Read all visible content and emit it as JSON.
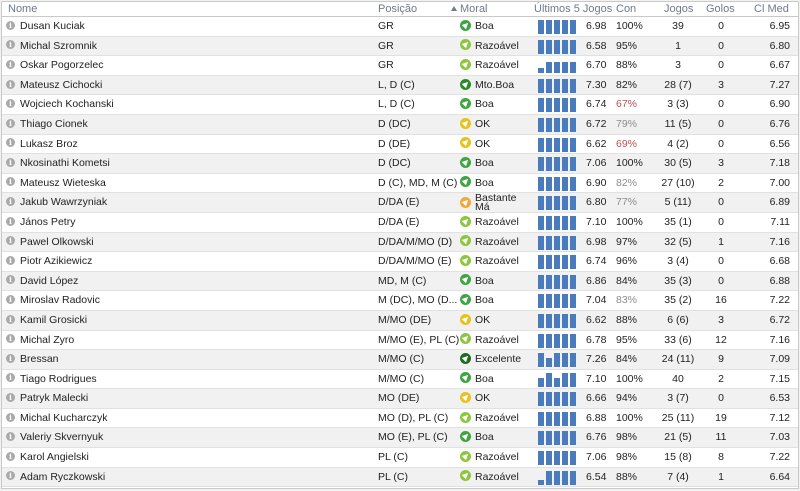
{
  "headers": {
    "name": "Nome",
    "position": "Posição",
    "morale": "Moral",
    "last5": "Últimos 5 Jogos",
    "con": "Con",
    "games": "Jogos",
    "goals": "Golos",
    "avg_rating": "Cl Med"
  },
  "colors": {
    "bar": "#4a7bbd",
    "low_condition": "#c0504d",
    "header_text": "#6f7a8a"
  },
  "players": [
    {
      "name": "Dusan Kuciak",
      "pos": "GR",
      "morale": "Boa",
      "morale_icon": "m-boa",
      "form": [
        6.9,
        6.9,
        6.9,
        6.9,
        6.9
      ],
      "last": "6.98",
      "con": "100%",
      "con_class": "",
      "games": "39",
      "goals": "0",
      "avg": "6.95"
    },
    {
      "name": "Michal Szromnik",
      "pos": "GR",
      "morale": "Razoável",
      "morale_icon": "m-raz",
      "form": [
        6.9,
        6.9,
        6.9,
        6.9,
        6.9
      ],
      "last": "6.58",
      "con": "95%",
      "con_class": "",
      "games": "1",
      "goals": "0",
      "avg": "6.80"
    },
    {
      "name": "Oskar Pogorzelec",
      "pos": "GR",
      "morale": "Razoável",
      "morale_icon": "m-raz",
      "form": [
        6.0,
        6.6,
        6.6,
        6.6,
        6.6
      ],
      "last": "6.70",
      "con": "88%",
      "con_class": "",
      "games": "3",
      "goals": "0",
      "avg": "6.67"
    },
    {
      "name": "Mateusz Cichocki",
      "pos": "L, D (C)",
      "morale": "Mto.Boa",
      "morale_icon": "m-mto",
      "form": [
        6.9,
        6.9,
        6.9,
        6.9,
        6.9
      ],
      "last": "7.30",
      "con": "82%",
      "con_class": "",
      "games": "28 (7)",
      "goals": "3",
      "avg": "7.27"
    },
    {
      "name": "Wojciech Kochanski",
      "pos": "L, D (C)",
      "morale": "Boa",
      "morale_icon": "m-boa",
      "form": [
        6.9,
        6.9,
        6.9,
        6.9,
        6.9
      ],
      "last": "6.74",
      "con": "67%",
      "con_class": "low",
      "games": "3 (3)",
      "goals": "0",
      "avg": "6.90"
    },
    {
      "name": "Thiago Cionek",
      "pos": "D (DC)",
      "morale": "OK",
      "morale_icon": "m-ok",
      "form": [
        6.9,
        6.9,
        6.9,
        6.9,
        6.9
      ],
      "last": "6.72",
      "con": "79%",
      "con_class": "mid",
      "games": "11 (5)",
      "goals": "0",
      "avg": "6.76"
    },
    {
      "name": "Lukasz Broz",
      "pos": "D (DE)",
      "morale": "OK",
      "morale_icon": "m-ok",
      "form": [
        6.9,
        6.9,
        6.9,
        6.9,
        6.9
      ],
      "last": "6.62",
      "con": "69%",
      "con_class": "low",
      "games": "4 (2)",
      "goals": "0",
      "avg": "6.56"
    },
    {
      "name": "Nkosinathi Kometsi",
      "pos": "D (DC)",
      "morale": "Boa",
      "morale_icon": "m-boa",
      "form": [
        6.9,
        6.9,
        6.9,
        6.9,
        6.9
      ],
      "last": "7.06",
      "con": "100%",
      "con_class": "",
      "games": "30 (5)",
      "goals": "3",
      "avg": "7.18"
    },
    {
      "name": "Mateusz Wieteska",
      "pos": "D (C), MD, M (C)",
      "morale": "Boa",
      "morale_icon": "m-boa",
      "form": [
        6.9,
        6.9,
        6.9,
        6.9,
        6.9
      ],
      "last": "6.90",
      "con": "82%",
      "con_class": "mid",
      "games": "27 (10)",
      "goals": "2",
      "avg": "7.00"
    },
    {
      "name": "Jakub Wawrzyniak",
      "pos": "D/DA (E)",
      "morale": "Bastante Má",
      "morale_l1": "Bastante",
      "morale_l2": "Má",
      "morale_icon": "m-bm",
      "form": [
        6.9,
        6.9,
        6.9,
        6.9,
        6.9
      ],
      "last": "6.80",
      "con": "77%",
      "con_class": "mid",
      "games": "5 (11)",
      "goals": "0",
      "avg": "6.89"
    },
    {
      "name": "János Petry",
      "pos": "D/DA (E)",
      "morale": "Razoável",
      "morale_icon": "m-raz",
      "form": [
        6.9,
        6.9,
        6.9,
        6.9,
        6.9
      ],
      "last": "7.10",
      "con": "100%",
      "con_class": "",
      "games": "35 (1)",
      "goals": "0",
      "avg": "7.11"
    },
    {
      "name": "Pawel Olkowski",
      "pos": "D/DA/M/MO (D)",
      "morale": "Razoável",
      "morale_icon": "m-raz",
      "form": [
        6.9,
        6.9,
        6.9,
        6.9,
        6.9
      ],
      "last": "6.98",
      "con": "97%",
      "con_class": "",
      "games": "32 (5)",
      "goals": "1",
      "avg": "7.16"
    },
    {
      "name": "Piotr Azikiewicz",
      "pos": "D/DA/M/MO (E)",
      "morale": "Razoável",
      "morale_icon": "m-raz",
      "form": [
        6.9,
        6.9,
        6.9,
        6.9,
        6.9
      ],
      "last": "6.74",
      "con": "96%",
      "con_class": "",
      "games": "3 (4)",
      "goals": "0",
      "avg": "6.68"
    },
    {
      "name": "David López",
      "pos": "MD, M (C)",
      "morale": "Boa",
      "morale_icon": "m-boa",
      "form": [
        6.9,
        6.9,
        6.9,
        6.9,
        6.9
      ],
      "last": "6.86",
      "con": "84%",
      "con_class": "",
      "games": "35 (3)",
      "goals": "0",
      "avg": "6.88"
    },
    {
      "name": "Miroslav Radovic",
      "pos": "M (DC), MO (D...",
      "morale": "Boa",
      "morale_icon": "m-boa",
      "form": [
        6.9,
        6.9,
        6.9,
        6.9,
        6.9
      ],
      "last": "7.04",
      "con": "83%",
      "con_class": "mid",
      "games": "35 (2)",
      "goals": "16",
      "avg": "7.22"
    },
    {
      "name": "Kamil Grosicki",
      "pos": "M/MO (DE)",
      "morale": "OK",
      "morale_icon": "m-ok",
      "form": [
        6.9,
        6.9,
        6.9,
        6.9,
        6.9
      ],
      "last": "6.62",
      "con": "88%",
      "con_class": "",
      "games": "6 (6)",
      "goals": "3",
      "avg": "6.72"
    },
    {
      "name": "Michal Zyro",
      "pos": "M/MO (E), PL (C)",
      "morale": "Razoável",
      "morale_icon": "m-raz",
      "form": [
        6.9,
        6.9,
        6.9,
        6.9,
        6.9
      ],
      "last": "6.78",
      "con": "95%",
      "con_class": "",
      "games": "33 (6)",
      "goals": "12",
      "avg": "7.16"
    },
    {
      "name": "Bressan",
      "pos": "M/MO (C)",
      "morale": "Excelente",
      "morale_icon": "m-exc",
      "form": [
        6.9,
        6.4,
        6.9,
        6.9,
        6.9
      ],
      "last": "7.26",
      "con": "84%",
      "con_class": "",
      "games": "24 (11)",
      "goals": "9",
      "avg": "7.09"
    },
    {
      "name": "Tiago Rodrigues",
      "pos": "M/MO (C)",
      "morale": "Boa",
      "morale_icon": "m-boa",
      "form": [
        6.4,
        6.9,
        6.4,
        6.9,
        6.9
      ],
      "last": "7.10",
      "con": "100%",
      "con_class": "",
      "games": "40",
      "goals": "2",
      "avg": "7.15"
    },
    {
      "name": "Patryk Malecki",
      "pos": "MO (DE)",
      "morale": "OK",
      "morale_icon": "m-ok",
      "form": [
        6.9,
        6.9,
        6.9,
        6.9,
        6.9
      ],
      "last": "6.66",
      "con": "94%",
      "con_class": "",
      "games": "3 (7)",
      "goals": "0",
      "avg": "6.53"
    },
    {
      "name": "Michal Kucharczyk",
      "pos": "MO (D), PL (C)",
      "morale": "Razoável",
      "morale_icon": "m-raz",
      "form": [
        6.9,
        6.9,
        6.9,
        6.9,
        6.9
      ],
      "last": "6.88",
      "con": "100%",
      "con_class": "",
      "games": "25 (11)",
      "goals": "19",
      "avg": "7.12"
    },
    {
      "name": "Valeriy Skvernyuk",
      "pos": "MO (E), PL (C)",
      "morale": "Boa",
      "morale_icon": "m-boa",
      "form": [
        6.9,
        6.9,
        6.9,
        6.9,
        6.9
      ],
      "last": "6.76",
      "con": "98%",
      "con_class": "",
      "games": "21 (5)",
      "goals": "11",
      "avg": "7.03"
    },
    {
      "name": "Karol Angielski",
      "pos": "PL (C)",
      "morale": "Razoável",
      "morale_icon": "m-raz",
      "form": [
        6.9,
        6.9,
        6.9,
        6.9,
        6.9
      ],
      "last": "7.06",
      "con": "98%",
      "con_class": "",
      "games": "15 (8)",
      "goals": "8",
      "avg": "7.22"
    },
    {
      "name": "Adam Ryczkowski",
      "pos": "PL (C)",
      "morale": "Razoável",
      "morale_icon": "m-raz",
      "form": [
        6.0,
        6.9,
        6.9,
        6.9,
        6.9
      ],
      "last": "6.54",
      "con": "88%",
      "con_class": "",
      "games": "7 (4)",
      "goals": "1",
      "avg": "6.64"
    }
  ]
}
